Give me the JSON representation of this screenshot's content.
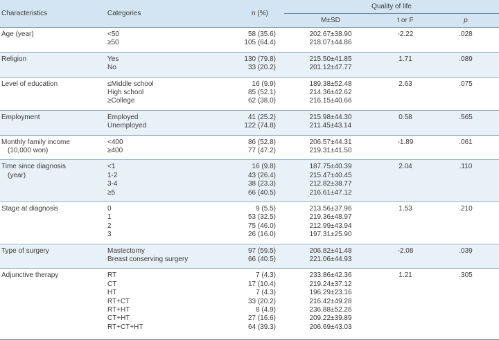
{
  "header": {
    "characteristics": "Characteristics",
    "categories": "Categories",
    "n_pct": "n (%)",
    "quality_of_life": "Quality of life",
    "m_sd": "M±SD",
    "t_or_f": "t or F",
    "p": "p"
  },
  "rows": [
    {
      "char": [
        "Age (year)"
      ],
      "cats": [
        "<50",
        "≥50"
      ],
      "n": [
        "58 (35.6)",
        "105 (64.4)"
      ],
      "msd": [
        "202.67±38.90",
        "218.07±44.86"
      ],
      "t": "-2.22",
      "p": ".028"
    },
    {
      "char": [
        "Religion"
      ],
      "cats": [
        "Yes",
        "No"
      ],
      "n": [
        "130 (79.8)",
        "33 (20.2)"
      ],
      "msd": [
        "215.50±41.85",
        "201.12±47.77"
      ],
      "t": "1.71",
      "p": ".089"
    },
    {
      "char": [
        "Level of education"
      ],
      "cats": [
        "≤Middle school",
        "High school",
        "≥College"
      ],
      "n": [
        "16 (9.9)",
        "85 (52.1)",
        "62 (38.0)"
      ],
      "msd": [
        "189.38±52.48",
        "214.36±42.62",
        "216.15±40.66"
      ],
      "t": "2.63",
      "p": ".075"
    },
    {
      "char": [
        "Employment"
      ],
      "cats": [
        "Employed",
        "Unemployed"
      ],
      "n": [
        "41 (25.2)",
        "122 (74.8)"
      ],
      "msd": [
        "215.98±44.30",
        "211.45±43.14"
      ],
      "t": "0.58",
      "p": ".565"
    },
    {
      "char": [
        "Monthly family income",
        "(10,000 won)"
      ],
      "cats": [
        "<400",
        "≥400"
      ],
      "n": [
        "86 (52.8)",
        "77 (47.2)"
      ],
      "msd": [
        "206.57±44.31",
        "219.31±41.50"
      ],
      "t": "-1.89",
      "p": ".061"
    },
    {
      "char": [
        "Time since diagnosis",
        "(year)"
      ],
      "cats": [
        "<1",
        "1-2",
        "3-4",
        "≥5"
      ],
      "n": [
        "16 (9.8)",
        "43 (26.4)",
        "38 (23.3)",
        "66 (40.5)"
      ],
      "msd": [
        "187.75±40.39",
        "215.47±40.45",
        "212.82±38.77",
        "216.61±47.12"
      ],
      "t": "2.04",
      "p": ".110"
    },
    {
      "char": [
        "Stage at diagnosis"
      ],
      "cats": [
        "0",
        "1",
        "2",
        "3"
      ],
      "n": [
        "9 (5.5)",
        "53 (32.5)",
        "75 (46.0)",
        "26 (16.0)"
      ],
      "msd": [
        "213.56±37.96",
        "219.36±48.97",
        "212.99±43.94",
        "197.31±25.90"
      ],
      "t": "1.53",
      "p": ".210"
    },
    {
      "char": [
        "Type of surgery"
      ],
      "cats": [
        "Mastectomy",
        "Breast conserving surgery"
      ],
      "n": [
        "97 (59.5)",
        "66 (40.5)"
      ],
      "msd": [
        "206.82±41.48",
        "221.06±44.93"
      ],
      "t": "-2.08",
      "p": ".039"
    },
    {
      "char": [
        "Adjunctive therapy"
      ],
      "cats": [
        "RT",
        "CT",
        "HT",
        "RT+CT",
        "RT+HT",
        "CT+HT",
        "RT+CT+HT"
      ],
      "n": [
        "7 (4.3)",
        "17 (10.4)",
        "7 (4.3)",
        "33 (20.2)",
        "8 (4.9)",
        "27 (16.6)",
        "64 (39.3)"
      ],
      "msd": [
        "233.86±42.36",
        "219.24±37.12",
        "196.29±23.16",
        "216.42±49.28",
        "236.88±52.26",
        "209.22±39.89",
        "206.69±43.03"
      ],
      "t": "1.21",
      "p": ".305"
    }
  ]
}
